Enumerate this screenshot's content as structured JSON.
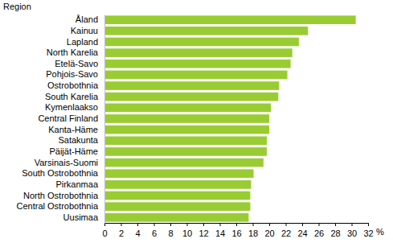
{
  "chart_data": {
    "type": "bar",
    "orientation": "horizontal",
    "y_label": "Region",
    "x_label": "%",
    "categories": [
      "Åland",
      "Kainuu",
      "Lapland",
      "North Karelia",
      "Etelä-Savo",
      "Pohjois-Savo",
      "Ostrobothnia",
      "South Karelia",
      "Kymenlaakso",
      "Central Finland",
      "Kanta-Häme",
      "Satakunta",
      "Päijät-Häme",
      "Varsinais-Suomi",
      "South Ostrobothnia",
      "Pirkanmaa",
      "North Ostrobothnia",
      "Central Ostrobothnia",
      "Uusimaa"
    ],
    "values": [
      30.5,
      24.7,
      23.6,
      22.8,
      22.6,
      22.2,
      21.2,
      21.1,
      20.2,
      20.0,
      20.0,
      19.7,
      19.7,
      19.3,
      18.1,
      17.8,
      17.7,
      17.7,
      17.5
    ],
    "color": "#99cc33",
    "xlim": [
      0,
      32
    ],
    "xticks": [
      0,
      2,
      4,
      6,
      8,
      10,
      12,
      14,
      16,
      18,
      20,
      22,
      24,
      26,
      28,
      30,
      32
    ],
    "grid": false
  }
}
